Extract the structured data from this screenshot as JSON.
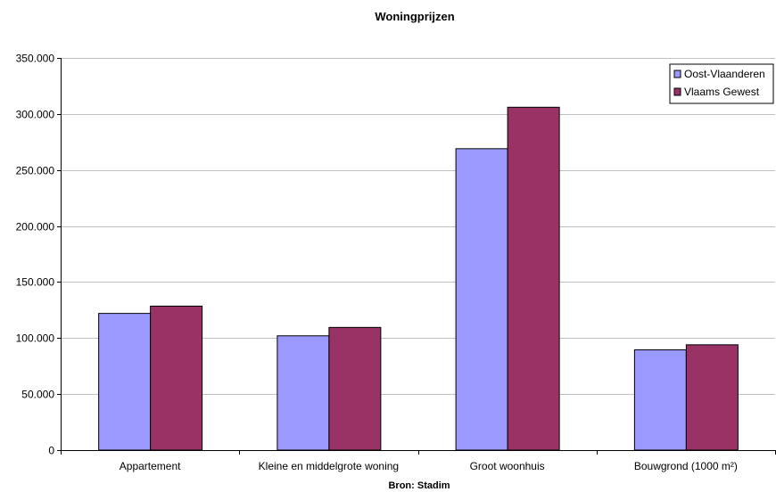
{
  "chart_data": {
    "type": "bar",
    "title": "Woningprijzen",
    "xlabel": "Bron: Stadim",
    "ylabel": "",
    "categories": [
      "Appartement",
      "Kleine en middelgrote woning",
      "Groot woonhuis",
      "Bouwgrond (1000 m²)"
    ],
    "series": [
      {
        "name": "Oost-Vlaanderen",
        "values": [
          122000,
          102000,
          269000,
          89500
        ]
      },
      {
        "name": "Vlaams Gewest",
        "values": [
          128500,
          109500,
          306000,
          94000
        ]
      }
    ],
    "ylim": [
      0,
      350000
    ],
    "yticks": [
      0,
      50000,
      100000,
      150000,
      200000,
      250000,
      300000,
      350000
    ],
    "ytick_labels": [
      "0",
      "50.000",
      "100.000",
      "150.000",
      "200.000",
      "250.000",
      "300.000",
      "350.000"
    ],
    "grid": true,
    "legend_position": "top-right",
    "colors": [
      "#9999ff",
      "#993366"
    ]
  }
}
